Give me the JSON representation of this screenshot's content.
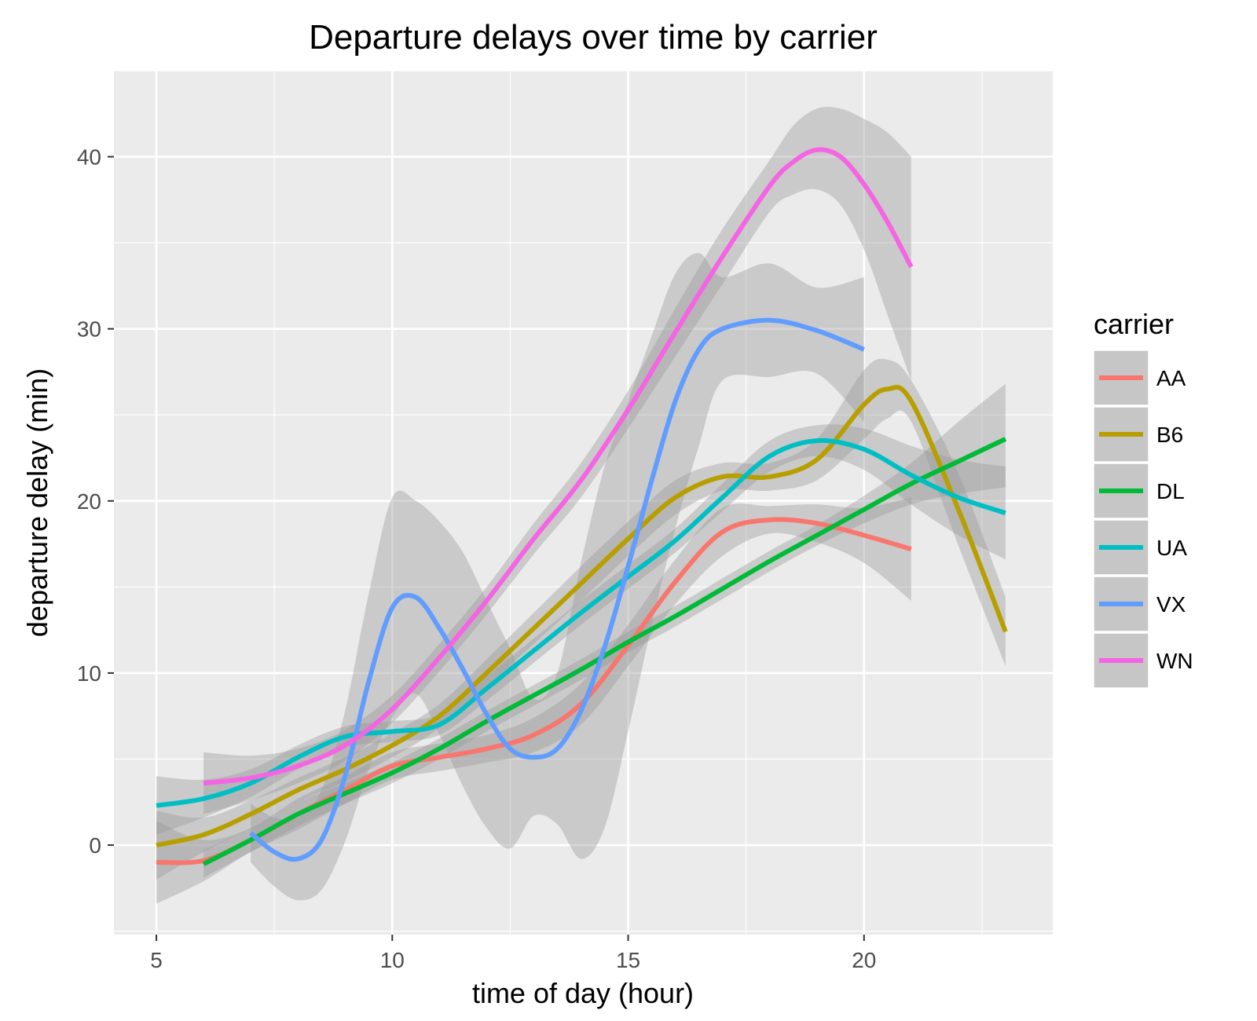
{
  "chart_data": {
    "type": "line",
    "title": "Departure delays over time by carrier",
    "xlabel": "time of day (hour)",
    "ylabel": "departure delay (min)",
    "xlim": [
      4.1,
      24.0
    ],
    "ylim": [
      -5.2,
      45.0
    ],
    "x_ticks": [
      5,
      10,
      15,
      20
    ],
    "x_tick_labels": [
      "5",
      "10",
      "15",
      "20"
    ],
    "y_ticks": [
      0,
      10,
      20,
      30,
      40
    ],
    "y_tick_labels": [
      "0",
      "10",
      "20",
      "30",
      "40"
    ],
    "grid": true,
    "legend_title": "carrier",
    "legend_position": "right",
    "series": [
      {
        "name": "AA",
        "color": "#F8766D",
        "x": [
          5,
          6,
          7,
          8,
          9,
          10,
          11,
          12,
          13,
          14,
          15,
          16,
          17,
          18,
          19,
          20,
          21
        ],
        "y": [
          -1.0,
          -0.9,
          0.3,
          1.8,
          3.2,
          4.6,
          5.1,
          5.6,
          6.4,
          8.2,
          11.6,
          15.3,
          18.2,
          18.9,
          18.7,
          18.0,
          17.2
        ],
        "lower": [
          -3.4,
          -2.1,
          -0.4,
          0.9,
          2.4,
          3.8,
          4.3,
          4.8,
          5.4,
          7.0,
          10.4,
          14.0,
          16.8,
          18.1,
          17.6,
          16.4,
          14.2
        ],
        "upper": [
          1.4,
          0.3,
          1.0,
          2.7,
          4.0,
          5.4,
          5.9,
          6.4,
          7.4,
          9.4,
          12.8,
          16.6,
          19.6,
          19.7,
          19.8,
          19.6,
          20.2
        ]
      },
      {
        "name": "B6",
        "color": "#B79F00",
        "x": [
          5,
          6,
          7,
          8,
          9,
          10,
          11,
          12,
          13,
          14,
          15,
          16,
          17,
          18,
          19,
          20,
          20.5,
          21,
          22,
          23
        ],
        "y": [
          0.0,
          0.6,
          1.8,
          3.2,
          4.4,
          5.8,
          7.5,
          10.0,
          12.6,
          15.2,
          17.8,
          20.2,
          21.4,
          21.4,
          22.4,
          25.6,
          26.5,
          25.8,
          19.5,
          12.4
        ],
        "lower": [
          -2.0,
          -0.4,
          1.0,
          2.5,
          3.7,
          5.1,
          6.8,
          9.2,
          11.7,
          14.2,
          16.8,
          19.2,
          20.6,
          20.6,
          21.2,
          23.6,
          24.8,
          24.6,
          17.4,
          10.4
        ],
        "upper": [
          2.0,
          1.6,
          2.6,
          3.9,
          5.1,
          6.5,
          8.2,
          10.8,
          13.5,
          16.2,
          18.8,
          21.2,
          22.2,
          22.2,
          23.6,
          27.6,
          28.2,
          27.0,
          21.6,
          14.4
        ]
      },
      {
        "name": "DL",
        "color": "#00BA38",
        "x": [
          6,
          7,
          8,
          9,
          10,
          11,
          12,
          13,
          14,
          15,
          16,
          17,
          18,
          19,
          20,
          21,
          22,
          23
        ],
        "y": [
          -1.1,
          0.3,
          1.8,
          3.0,
          4.2,
          5.6,
          7.2,
          8.7,
          10.2,
          11.8,
          13.3,
          14.9,
          16.5,
          18.0,
          19.5,
          21.0,
          22.3,
          23.6
        ],
        "lower": [
          -1.9,
          -0.4,
          1.1,
          2.4,
          3.6,
          5.0,
          6.6,
          8.1,
          9.6,
          11.2,
          12.7,
          14.3,
          15.9,
          17.4,
          18.7,
          19.8,
          20.4,
          20.8
        ],
        "upper": [
          -0.3,
          1.0,
          2.5,
          3.6,
          4.8,
          6.2,
          7.8,
          9.3,
          10.8,
          12.4,
          13.9,
          15.5,
          17.1,
          18.6,
          20.3,
          22.2,
          24.6,
          26.8
        ]
      },
      {
        "name": "UA",
        "color": "#00BFC4",
        "x": [
          5,
          6,
          7,
          8,
          9,
          10,
          11,
          12,
          13,
          14,
          15,
          16,
          17,
          18,
          19,
          20,
          21,
          22,
          23
        ],
        "y": [
          2.3,
          2.7,
          3.6,
          5.1,
          6.3,
          6.6,
          7.0,
          9.1,
          11.3,
          13.5,
          15.6,
          17.7,
          20.2,
          22.6,
          23.5,
          23.0,
          21.5,
          20.2,
          19.3
        ],
        "lower": [
          0.6,
          1.6,
          2.8,
          4.4,
          5.7,
          6.0,
          6.4,
          8.4,
          10.6,
          12.8,
          14.9,
          17.0,
          19.4,
          21.7,
          22.6,
          21.8,
          19.8,
          18.0,
          16.6
        ],
        "upper": [
          4.0,
          3.8,
          4.4,
          5.8,
          6.9,
          7.2,
          7.6,
          9.8,
          12.0,
          14.2,
          16.3,
          18.4,
          21.0,
          23.5,
          24.4,
          24.2,
          23.2,
          22.4,
          22.0
        ]
      },
      {
        "name": "VX",
        "color": "#619CFF",
        "x": [
          7,
          7.5,
          8,
          8.5,
          9,
          9.5,
          10,
          10.5,
          11,
          11.5,
          12,
          12.5,
          13,
          13.5,
          14,
          14.5,
          15,
          15.5,
          16,
          16.5,
          17,
          18,
          19,
          20
        ],
        "y": [
          0.7,
          -0.4,
          -0.8,
          0.3,
          4.0,
          9.5,
          13.8,
          14.4,
          12.6,
          10.2,
          7.6,
          5.6,
          5.1,
          5.6,
          7.8,
          11.5,
          16.2,
          21.2,
          25.8,
          28.8,
          30.0,
          30.5,
          29.9,
          28.8
        ],
        "lower": [
          -1.0,
          -2.4,
          -3.2,
          -2.6,
          0.2,
          4.4,
          7.4,
          8.8,
          6.4,
          3.4,
          1.0,
          -0.2,
          1.7,
          1.2,
          -0.8,
          1.0,
          6.6,
          12.8,
          18.4,
          23.2,
          27.0,
          27.2,
          27.4,
          24.6
        ],
        "upper": [
          2.4,
          1.6,
          1.6,
          3.2,
          7.8,
          14.6,
          20.2,
          20.0,
          18.8,
          17.0,
          14.2,
          11.4,
          8.5,
          10.0,
          16.4,
          22.0,
          25.8,
          29.6,
          33.2,
          34.4,
          33.0,
          33.8,
          32.4,
          33.0
        ]
      },
      {
        "name": "WN",
        "color": "#F564E3",
        "x": [
          6,
          7,
          8,
          9,
          10,
          11,
          12,
          13,
          14,
          15,
          16,
          17,
          18,
          18.5,
          19,
          19.5,
          20,
          20.5,
          21
        ],
        "y": [
          3.6,
          3.9,
          4.6,
          5.8,
          7.9,
          10.9,
          14.2,
          17.8,
          21.2,
          25.3,
          29.8,
          34.2,
          38.3,
          39.7,
          40.4,
          40.0,
          38.4,
          36.2,
          33.6
        ],
        "lower": [
          1.8,
          2.6,
          3.6,
          4.9,
          7.1,
          10.1,
          13.4,
          16.9,
          20.2,
          24.2,
          28.4,
          32.6,
          36.8,
          37.8,
          38.1,
          37.2,
          34.6,
          30.8,
          27.0
        ],
        "upper": [
          5.4,
          5.2,
          5.6,
          6.7,
          8.7,
          11.7,
          15.0,
          18.7,
          22.2,
          26.4,
          31.2,
          35.8,
          39.8,
          41.8,
          42.8,
          42.8,
          42.2,
          41.4,
          40.0
        ]
      }
    ]
  }
}
